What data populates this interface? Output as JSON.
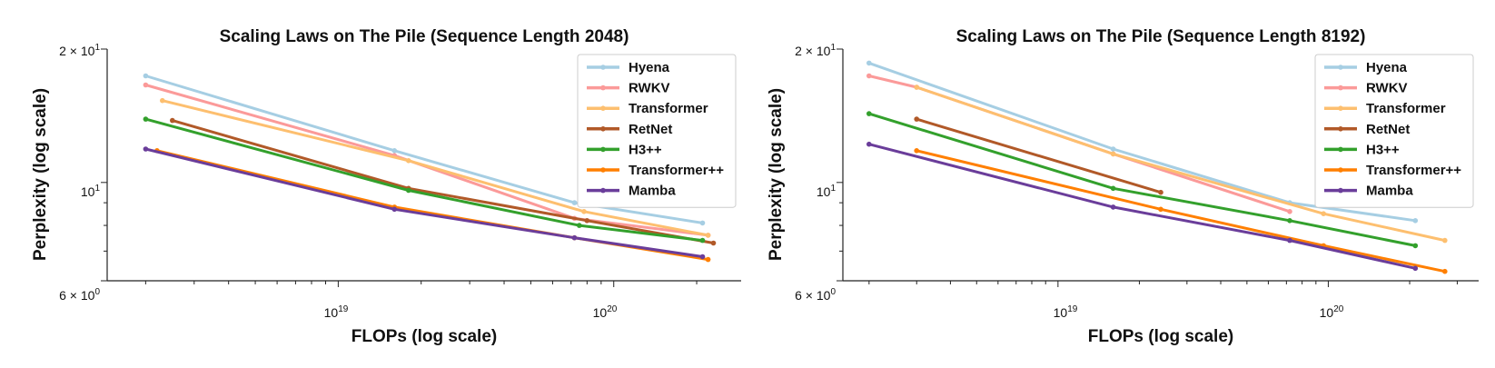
{
  "chart_data": [
    {
      "type": "line",
      "title": "Scaling Laws on The Pile (Sequence Length 2048)",
      "xlabel": "FLOPs (log scale)",
      "ylabel": "Perplexity (log scale)",
      "xscale": "log",
      "yscale": "log",
      "xlim": [
        1.45e+18,
        2.9e+20
      ],
      "ylim": [
        6,
        20
      ],
      "xticks": [
        "10^19",
        "10^20"
      ],
      "yticks": [
        "2 × 10^1",
        "10^1",
        "6 × 10^0"
      ],
      "grid": false,
      "legend_position": "top-right",
      "series": [
        {
          "name": "Hyena",
          "color": "#a6cee3",
          "x": [
            2e+18,
            1.6e+19,
            7.2e+19,
            2.1e+20
          ],
          "y": [
            17.4,
            11.8,
            9.0,
            8.1
          ]
        },
        {
          "name": "RWKV",
          "color": "#fb9a99",
          "x": [
            2e+18,
            1.6e+19,
            7.2e+19,
            2.2e+20
          ],
          "y": [
            16.6,
            11.5,
            8.3,
            7.6
          ]
        },
        {
          "name": "Transformer",
          "color": "#fdbf6f",
          "x": [
            2.3e+18,
            1.8e+19,
            7.8e+19,
            2.2e+20
          ],
          "y": [
            15.3,
            11.2,
            8.6,
            7.6
          ]
        },
        {
          "name": "RetNet",
          "color": "#b15928",
          "x": [
            2.5e+18,
            1.8e+19,
            8e+19,
            2.3e+20
          ],
          "y": [
            13.8,
            9.7,
            8.2,
            7.3
          ]
        },
        {
          "name": "H3++",
          "color": "#33a02c",
          "x": [
            2e+18,
            1.8e+19,
            7.5e+19,
            2.1e+20
          ],
          "y": [
            13.9,
            9.6,
            8.0,
            7.4
          ]
        },
        {
          "name": "Transformer++",
          "color": "#ff7f00",
          "x": [
            2.2e+18,
            1.6e+19,
            7.2e+19,
            2.2e+20
          ],
          "y": [
            11.8,
            8.8,
            7.5,
            6.7
          ]
        },
        {
          "name": "Mamba",
          "color": "#6a3d9a",
          "x": [
            2e+18,
            1.6e+19,
            7.2e+19,
            2.1e+20
          ],
          "y": [
            11.9,
            8.7,
            7.5,
            6.8
          ]
        }
      ]
    },
    {
      "type": "line",
      "title": "Scaling Laws on The Pile (Sequence Length 8192)",
      "xlabel": "FLOPs (log scale)",
      "ylabel": "Perplexity (log scale)",
      "xscale": "log",
      "yscale": "log",
      "xlim": [
        1.6e+18,
        3.6e+20
      ],
      "ylim": [
        6,
        20
      ],
      "xticks": [
        "10^19",
        "10^20"
      ],
      "yticks": [
        "2 × 10^1",
        "10^1",
        "6 × 10^0"
      ],
      "grid": false,
      "legend_position": "top-right",
      "series": [
        {
          "name": "Hyena",
          "color": "#a6cee3",
          "x": [
            2e+18,
            1.6e+19,
            7.2e+19,
            2.1e+20
          ],
          "y": [
            18.6,
            11.9,
            9.0,
            8.2
          ]
        },
        {
          "name": "RWKV",
          "color": "#fb9a99",
          "x": [
            2e+18,
            3e+18,
            1.6e+19,
            7.2e+19
          ],
          "y": [
            17.4,
            16.4,
            11.6,
            8.6
          ]
        },
        {
          "name": "Transformer",
          "color": "#fdbf6f",
          "x": [
            3e+18,
            1.6e+19,
            9.6e+19,
            2.7e+20
          ],
          "y": [
            16.4,
            11.6,
            8.5,
            7.4
          ]
        },
        {
          "name": "RetNet",
          "color": "#b15928",
          "x": [
            3e+18,
            2.4e+19
          ],
          "y": [
            13.9,
            9.5
          ]
        },
        {
          "name": "H3++",
          "color": "#33a02c",
          "x": [
            2e+18,
            1.6e+19,
            7.2e+19,
            2.1e+20
          ],
          "y": [
            14.3,
            9.7,
            8.2,
            7.2
          ]
        },
        {
          "name": "Transformer++",
          "color": "#ff7f00",
          "x": [
            3e+18,
            2.4e+19,
            9.6e+19,
            2.7e+20
          ],
          "y": [
            11.8,
            8.7,
            7.2,
            6.3
          ]
        },
        {
          "name": "Mamba",
          "color": "#6a3d9a",
          "x": [
            2e+18,
            1.6e+19,
            7.2e+19,
            2.1e+20
          ],
          "y": [
            12.2,
            8.8,
            7.4,
            6.4
          ]
        }
      ]
    }
  ]
}
